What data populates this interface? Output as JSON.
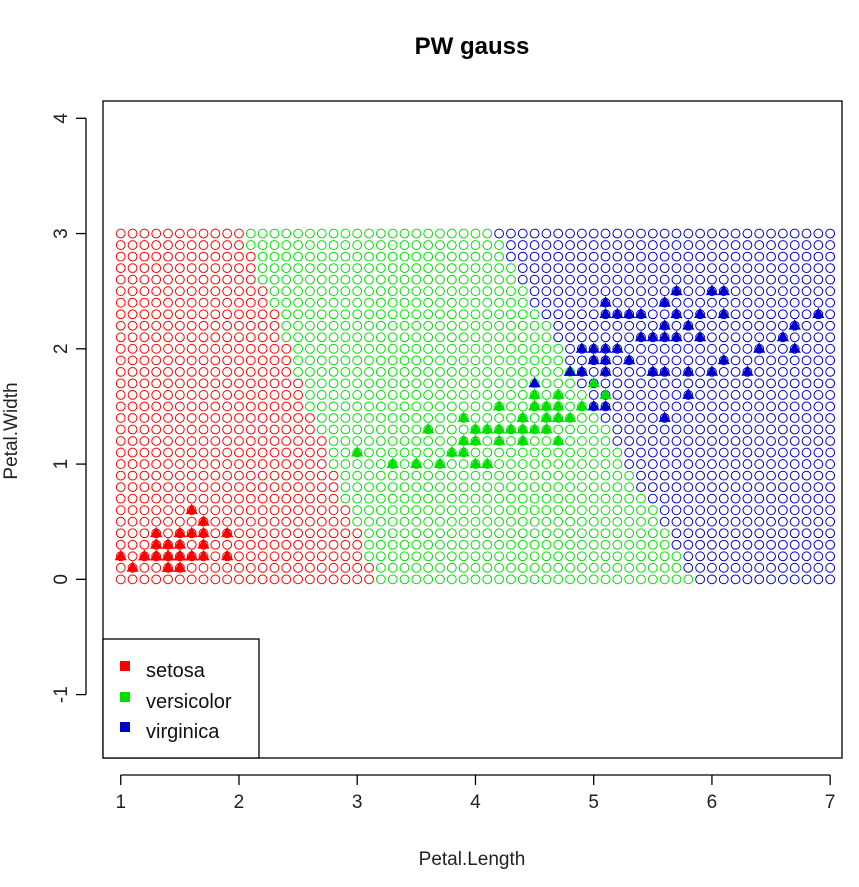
{
  "chart_data": {
    "type": "scatter",
    "title": "PW gauss",
    "xlabel": "Petal.Length",
    "ylabel": "Petal.Width",
    "xlim": [
      0.85,
      7.1
    ],
    "ylim": [
      -1.55,
      4.15
    ],
    "x_ticks": [
      1,
      2,
      3,
      4,
      5,
      6,
      7
    ],
    "y_ticks": [
      -1,
      0,
      1,
      2,
      3,
      4
    ],
    "grid": false,
    "legend_position": "bottom-left",
    "colors": {
      "setosa": "#ff0000",
      "versicolor": "#00e000",
      "virginica": "#0000cc"
    },
    "background_grid": {
      "x_range": [
        1,
        7
      ],
      "y_range": [
        0,
        3
      ],
      "x_steps": 61,
      "y_steps": 31,
      "boundaries": [
        {
          "left": "setosa",
          "right": "versicolor",
          "x_at_y0": 3.15,
          "x_at_y3": 2.05
        },
        {
          "left": "versicolor",
          "right": "virginica",
          "x_at_y0": 5.85,
          "x_at_y3": 4.15
        }
      ]
    },
    "legend": [
      {
        "label": "setosa",
        "color": "#ff0000"
      },
      {
        "label": "versicolor",
        "color": "#00e000"
      },
      {
        "label": "virginica",
        "color": "#0000cc"
      }
    ],
    "series": [
      {
        "name": "setosa",
        "color": "#ff0000",
        "points": [
          [
            1.4,
            0.2
          ],
          [
            1.4,
            0.2
          ],
          [
            1.3,
            0.2
          ],
          [
            1.5,
            0.2
          ],
          [
            1.4,
            0.2
          ],
          [
            1.7,
            0.4
          ],
          [
            1.4,
            0.3
          ],
          [
            1.5,
            0.2
          ],
          [
            1.4,
            0.2
          ],
          [
            1.5,
            0.1
          ],
          [
            1.5,
            0.2
          ],
          [
            1.6,
            0.2
          ],
          [
            1.4,
            0.1
          ],
          [
            1.1,
            0.1
          ],
          [
            1.2,
            0.2
          ],
          [
            1.5,
            0.4
          ],
          [
            1.3,
            0.4
          ],
          [
            1.4,
            0.3
          ],
          [
            1.7,
            0.3
          ],
          [
            1.5,
            0.3
          ],
          [
            1.7,
            0.2
          ],
          [
            1.5,
            0.4
          ],
          [
            1.0,
            0.2
          ],
          [
            1.7,
            0.5
          ],
          [
            1.9,
            0.2
          ],
          [
            1.6,
            0.2
          ],
          [
            1.6,
            0.4
          ],
          [
            1.5,
            0.2
          ],
          [
            1.4,
            0.2
          ],
          [
            1.6,
            0.2
          ],
          [
            1.6,
            0.2
          ],
          [
            1.5,
            0.4
          ],
          [
            1.5,
            0.1
          ],
          [
            1.4,
            0.2
          ],
          [
            1.5,
            0.2
          ],
          [
            1.2,
            0.2
          ],
          [
            1.3,
            0.2
          ],
          [
            1.4,
            0.1
          ],
          [
            1.3,
            0.2
          ],
          [
            1.5,
            0.2
          ],
          [
            1.3,
            0.3
          ],
          [
            1.3,
            0.3
          ],
          [
            1.3,
            0.2
          ],
          [
            1.6,
            0.6
          ],
          [
            1.9,
            0.4
          ],
          [
            1.4,
            0.3
          ],
          [
            1.6,
            0.2
          ],
          [
            1.4,
            0.2
          ],
          [
            1.5,
            0.2
          ],
          [
            1.4,
            0.2
          ]
        ]
      },
      {
        "name": "versicolor",
        "color": "#00e000",
        "points": [
          [
            4.7,
            1.4
          ],
          [
            4.5,
            1.5
          ],
          [
            4.9,
            1.5
          ],
          [
            4.0,
            1.3
          ],
          [
            4.6,
            1.5
          ],
          [
            4.5,
            1.3
          ],
          [
            4.7,
            1.6
          ],
          [
            3.3,
            1.0
          ],
          [
            4.6,
            1.3
          ],
          [
            3.9,
            1.4
          ],
          [
            3.5,
            1.0
          ],
          [
            4.2,
            1.5
          ],
          [
            4.0,
            1.0
          ],
          [
            4.7,
            1.4
          ],
          [
            3.6,
            1.3
          ],
          [
            4.4,
            1.4
          ],
          [
            4.5,
            1.5
          ],
          [
            4.1,
            1.0
          ],
          [
            4.5,
            1.5
          ],
          [
            3.9,
            1.1
          ],
          [
            4.8,
            1.8
          ],
          [
            4.0,
            1.3
          ],
          [
            4.9,
            1.5
          ],
          [
            4.7,
            1.2
          ],
          [
            4.3,
            1.3
          ],
          [
            4.4,
            1.4
          ],
          [
            4.8,
            1.4
          ],
          [
            5.0,
            1.7
          ],
          [
            4.5,
            1.5
          ],
          [
            3.5,
            1.0
          ],
          [
            3.8,
            1.1
          ],
          [
            3.7,
            1.0
          ],
          [
            3.9,
            1.2
          ],
          [
            5.1,
            1.6
          ],
          [
            4.5,
            1.5
          ],
          [
            4.5,
            1.6
          ],
          [
            4.7,
            1.5
          ],
          [
            4.4,
            1.3
          ],
          [
            4.1,
            1.3
          ],
          [
            4.0,
            1.3
          ],
          [
            4.4,
            1.2
          ],
          [
            4.6,
            1.4
          ],
          [
            4.0,
            1.2
          ],
          [
            3.3,
            1.0
          ],
          [
            4.2,
            1.3
          ],
          [
            4.2,
            1.2
          ],
          [
            4.2,
            1.3
          ],
          [
            4.3,
            1.3
          ],
          [
            3.0,
            1.1
          ],
          [
            4.1,
            1.3
          ]
        ]
      },
      {
        "name": "virginica",
        "color": "#0000cc",
        "points": [
          [
            6.0,
            2.5
          ],
          [
            5.1,
            1.9
          ],
          [
            5.9,
            2.1
          ],
          [
            5.6,
            1.8
          ],
          [
            5.8,
            2.2
          ],
          [
            6.6,
            2.1
          ],
          [
            4.5,
            1.7
          ],
          [
            6.3,
            1.8
          ],
          [
            5.8,
            1.8
          ],
          [
            6.1,
            2.5
          ],
          [
            5.1,
            2.0
          ],
          [
            5.3,
            1.9
          ],
          [
            5.5,
            2.1
          ],
          [
            5.0,
            2.0
          ],
          [
            5.1,
            2.4
          ],
          [
            5.3,
            2.3
          ],
          [
            5.5,
            1.8
          ],
          [
            6.7,
            2.2
          ],
          [
            6.9,
            2.3
          ],
          [
            5.0,
            1.5
          ],
          [
            5.7,
            2.3
          ],
          [
            4.9,
            2.0
          ],
          [
            6.7,
            2.0
          ],
          [
            4.9,
            1.8
          ],
          [
            5.7,
            2.1
          ],
          [
            6.0,
            1.8
          ],
          [
            4.8,
            1.8
          ],
          [
            4.9,
            1.8
          ],
          [
            5.6,
            2.1
          ],
          [
            5.8,
            1.6
          ],
          [
            6.1,
            1.9
          ],
          [
            6.4,
            2.0
          ],
          [
            5.6,
            2.2
          ],
          [
            5.1,
            1.5
          ],
          [
            5.6,
            1.4
          ],
          [
            6.1,
            2.3
          ],
          [
            5.6,
            2.4
          ],
          [
            5.5,
            1.8
          ],
          [
            4.8,
            1.8
          ],
          [
            5.4,
            2.1
          ],
          [
            5.6,
            2.4
          ],
          [
            5.1,
            2.3
          ],
          [
            5.9,
            2.3
          ],
          [
            5.7,
            2.5
          ],
          [
            5.2,
            2.3
          ],
          [
            5.0,
            1.9
          ],
          [
            5.2,
            2.0
          ],
          [
            5.4,
            2.3
          ],
          [
            5.1,
            1.8
          ]
        ]
      }
    ]
  }
}
